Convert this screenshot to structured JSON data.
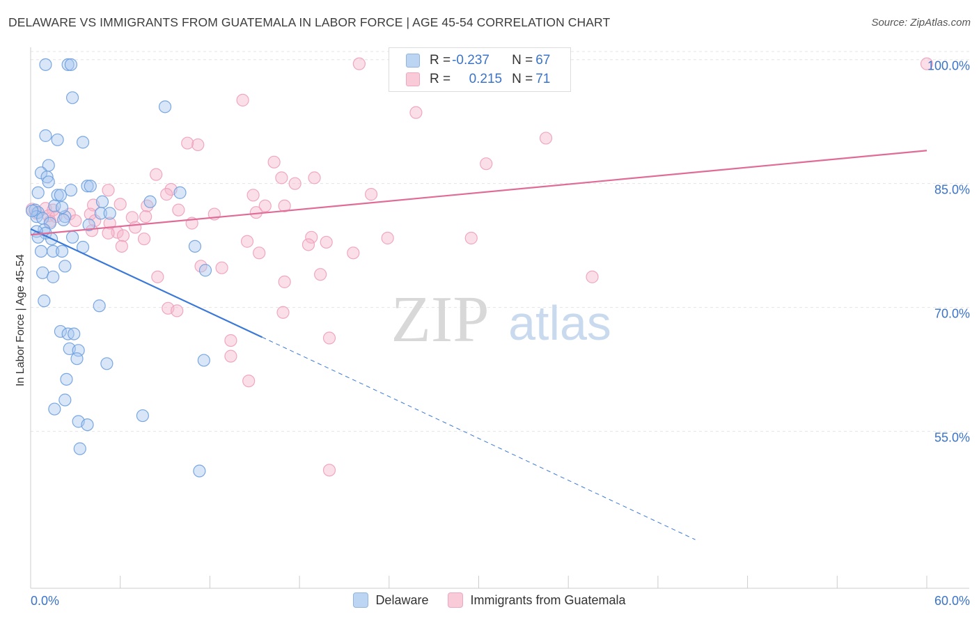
{
  "header": {
    "title": "DELAWARE VS IMMIGRANTS FROM GUATEMALA IN LABOR FORCE | AGE 45-54 CORRELATION CHART",
    "source": "Source: ZipAtlas.com"
  },
  "watermark": {
    "zip": "ZIP",
    "atlas": "atlas"
  },
  "legend": {
    "rows": [
      {
        "r_label": "R = ",
        "r_value": "-0.237",
        "n_label": "N = ",
        "n_value": "67",
        "color": "#a8c8f0"
      },
      {
        "r_label": "R = ",
        "r_value": "0.215",
        "n_label": "N = ",
        "n_value": "71",
        "color": "#f5b8cb"
      }
    ]
  },
  "bottom_legend": {
    "series_a": "Delaware",
    "series_b": "Immigrants from Guatemala"
  },
  "chart_data": {
    "type": "scatter",
    "title": "DELAWARE VS IMMIGRANTS FROM GUATEMALA IN LABOR FORCE | AGE 45-54 CORRELATION CHART",
    "xlabel": "",
    "ylabel": "In Labor Force | Age 45-54",
    "xlim": [
      0,
      60
    ],
    "ylim": [
      36,
      102
    ],
    "x_tick_labels": [
      "0.0%",
      "60.0%"
    ],
    "y_ticks": [
      55,
      70,
      85,
      100
    ],
    "y_tick_labels": [
      "55.0%",
      "70.0%",
      "85.0%",
      "100.0%"
    ],
    "grid": true,
    "colors": {
      "delaware": "#3a78d8",
      "delaware_fill": "#a8c8f0",
      "guatemala": "#e06b96",
      "guatemala_fill": "#f5b8cb",
      "axis_text": "#3a73c8"
    },
    "series": [
      {
        "name": "Delaware",
        "r": -0.237,
        "n": 67,
        "trend": {
          "x_start": 0,
          "y_start": 79.5,
          "x_solid_end": 15.5,
          "x_end": 44.5
        },
        "points": [
          [
            1.0,
            99.4
          ],
          [
            2.5,
            99.4
          ],
          [
            2.7,
            99.4
          ],
          [
            2.8,
            95.4
          ],
          [
            9.0,
            94.3
          ],
          [
            1.0,
            90.8
          ],
          [
            1.8,
            90.3
          ],
          [
            3.5,
            90.0
          ],
          [
            1.2,
            87.2
          ],
          [
            0.7,
            86.3
          ],
          [
            1.1,
            85.8
          ],
          [
            1.2,
            85.2
          ],
          [
            3.8,
            84.7
          ],
          [
            4.0,
            84.7
          ],
          [
            2.7,
            84.2
          ],
          [
            0.5,
            83.9
          ],
          [
            1.8,
            83.6
          ],
          [
            2.0,
            83.6
          ],
          [
            10.0,
            83.9
          ],
          [
            8.0,
            82.8
          ],
          [
            4.8,
            82.8
          ],
          [
            1.6,
            82.3
          ],
          [
            0.3,
            81.8
          ],
          [
            0.5,
            81.5
          ],
          [
            4.7,
            81.4
          ],
          [
            5.3,
            81.4
          ],
          [
            0.4,
            81.0
          ],
          [
            2.3,
            81.0
          ],
          [
            0.8,
            80.8
          ],
          [
            2.2,
            80.6
          ],
          [
            1.3,
            80.2
          ],
          [
            0.9,
            79.4
          ],
          [
            1.0,
            79.0
          ],
          [
            0.4,
            79.2
          ],
          [
            3.9,
            80.0
          ],
          [
            0.5,
            78.5
          ],
          [
            1.4,
            78.3
          ],
          [
            2.8,
            78.5
          ],
          [
            3.5,
            77.3
          ],
          [
            11.0,
            77.4
          ],
          [
            0.7,
            76.8
          ],
          [
            1.5,
            76.8
          ],
          [
            2.1,
            76.8
          ],
          [
            2.3,
            75.0
          ],
          [
            0.8,
            74.2
          ],
          [
            1.5,
            73.7
          ],
          [
            11.7,
            74.5
          ],
          [
            0.9,
            70.8
          ],
          [
            4.6,
            70.2
          ],
          [
            2.0,
            67.1
          ],
          [
            2.5,
            66.8
          ],
          [
            2.9,
            66.8
          ],
          [
            2.6,
            65.0
          ],
          [
            3.2,
            64.8
          ],
          [
            3.1,
            63.8
          ],
          [
            5.1,
            63.2
          ],
          [
            11.6,
            63.6
          ],
          [
            2.4,
            61.3
          ],
          [
            2.3,
            58.8
          ],
          [
            1.6,
            57.7
          ],
          [
            7.5,
            56.9
          ],
          [
            3.2,
            56.2
          ],
          [
            3.8,
            55.8
          ],
          [
            3.3,
            52.9
          ],
          [
            11.3,
            50.2
          ],
          [
            0.1,
            81.7
          ],
          [
            2.1,
            82.1
          ]
        ]
      },
      {
        "name": "Immigrants from Guatemala",
        "r": 0.215,
        "n": 71,
        "trend": {
          "x_start": 0,
          "y_start": 78.8,
          "x_end": 60,
          "y_end": 89.0
        },
        "points": [
          [
            22.0,
            99.5
          ],
          [
            34.0,
            99.5
          ],
          [
            60.0,
            99.5
          ],
          [
            14.2,
            95.1
          ],
          [
            25.8,
            93.6
          ],
          [
            34.5,
            90.5
          ],
          [
            10.5,
            89.9
          ],
          [
            11.2,
            89.7
          ],
          [
            16.3,
            87.6
          ],
          [
            30.5,
            87.4
          ],
          [
            8.4,
            86.1
          ],
          [
            19.0,
            85.7
          ],
          [
            16.8,
            85.7
          ],
          [
            17.7,
            85.0
          ],
          [
            9.4,
            84.3
          ],
          [
            5.2,
            84.2
          ],
          [
            9.1,
            83.7
          ],
          [
            14.9,
            83.6
          ],
          [
            22.8,
            83.7
          ],
          [
            6.0,
            82.5
          ],
          [
            7.8,
            82.3
          ],
          [
            4.2,
            82.4
          ],
          [
            15.7,
            82.3
          ],
          [
            17.0,
            82.3
          ],
          [
            1.0,
            82.0
          ],
          [
            1.5,
            81.8
          ],
          [
            9.9,
            81.8
          ],
          [
            0.4,
            81.4
          ],
          [
            2.6,
            81.3
          ],
          [
            4.0,
            81.3
          ],
          [
            12.3,
            81.3
          ],
          [
            15.1,
            81.5
          ],
          [
            1.2,
            81.1
          ],
          [
            1.7,
            81.0
          ],
          [
            7.7,
            81.0
          ],
          [
            6.8,
            80.9
          ],
          [
            4.3,
            80.5
          ],
          [
            1.3,
            80.4
          ],
          [
            3.0,
            80.5
          ],
          [
            5.3,
            80.2
          ],
          [
            10.8,
            80.2
          ],
          [
            7.0,
            79.7
          ],
          [
            4.1,
            79.3
          ],
          [
            5.8,
            79.1
          ],
          [
            5.2,
            79.0
          ],
          [
            6.2,
            78.7
          ],
          [
            18.8,
            78.5
          ],
          [
            23.9,
            78.4
          ],
          [
            29.5,
            78.4
          ],
          [
            7.6,
            78.3
          ],
          [
            14.5,
            78.0
          ],
          [
            19.8,
            77.9
          ],
          [
            18.6,
            77.6
          ],
          [
            6.1,
            77.4
          ],
          [
            21.6,
            76.6
          ],
          [
            15.3,
            76.6
          ],
          [
            12.8,
            74.8
          ],
          [
            11.4,
            75.0
          ],
          [
            19.4,
            74.0
          ],
          [
            37.6,
            73.7
          ],
          [
            8.5,
            73.7
          ],
          [
            17.0,
            73.1
          ],
          [
            9.2,
            69.9
          ],
          [
            9.8,
            69.6
          ],
          [
            16.9,
            69.4
          ],
          [
            13.4,
            66.0
          ],
          [
            20.0,
            66.3
          ],
          [
            13.4,
            64.1
          ],
          [
            14.6,
            61.1
          ],
          [
            20.0,
            50.3
          ],
          [
            0.1,
            81.9
          ]
        ]
      }
    ]
  }
}
